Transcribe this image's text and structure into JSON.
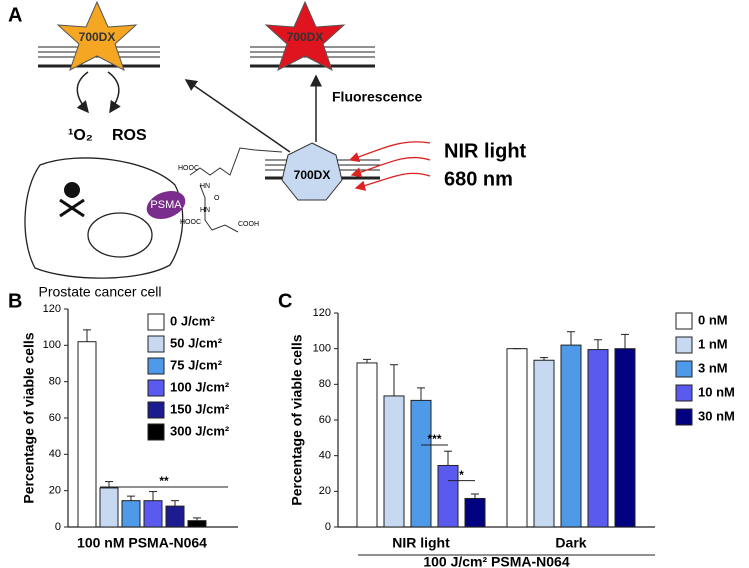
{
  "panels": [
    "A",
    "B",
    "C"
  ],
  "diagram": {
    "star_labels": [
      "700DX",
      "700DX"
    ],
    "conjugate_label": "700DX",
    "fluorescence": "Fluorescence",
    "species": [
      "¹O₂",
      "ROS"
    ],
    "light": [
      "NIR light",
      "680 nm"
    ],
    "receptor": "PSMA",
    "cell": "Prostate cancer cell",
    "chemistry": [
      "HOOC",
      "HN",
      "O",
      "HN",
      "HOOC",
      "COOH"
    ]
  },
  "chart_data": [
    {
      "type": "bar",
      "ylabel": "Percentage of viable cells",
      "categories": [
        "100 nM PSMA-N064"
      ],
      "ylim": [
        0,
        120
      ],
      "yticks": [
        0,
        20,
        40,
        60,
        80,
        100,
        120
      ],
      "annotations": [
        "**"
      ],
      "series": [
        {
          "name": "0 J/cm²",
          "color": "#ffffff",
          "values": [
            102
          ],
          "errors": [
            6.5
          ]
        },
        {
          "name": "50 J/cm²",
          "color": "#c6d9f1",
          "values": [
            21.5
          ],
          "errors": [
            3.5
          ]
        },
        {
          "name": "75 J/cm²",
          "color": "#4e9ae8",
          "values": [
            14.5
          ],
          "errors": [
            2.5
          ]
        },
        {
          "name": "100 J/cm²",
          "color": "#5a5aee",
          "values": [
            14.5
          ],
          "errors": [
            5
          ]
        },
        {
          "name": "150 J/cm²",
          "color": "#1c1c8e",
          "values": [
            11.5
          ],
          "errors": [
            3
          ]
        },
        {
          "name": "300 J/cm²",
          "color": "#000000",
          "values": [
            3.5
          ],
          "errors": [
            1.5
          ]
        }
      ]
    },
    {
      "type": "bar",
      "ylabel": "Percentage of viable cells",
      "xlabel": "100 J/cm² PSMA-N064",
      "categories": [
        "NIR light",
        "Dark"
      ],
      "ylim": [
        0,
        120
      ],
      "yticks": [
        0,
        20,
        40,
        60,
        80,
        100,
        120
      ],
      "annotations": [
        "***",
        "*"
      ],
      "series": [
        {
          "name": "0 nM",
          "color": "#ffffff",
          "values": [
            92,
            100
          ],
          "errors": [
            2,
            0
          ]
        },
        {
          "name": "1 nM",
          "color": "#c6d9f1",
          "values": [
            73.5,
            93.5
          ],
          "errors": [
            17.5,
            1.5
          ]
        },
        {
          "name": "3 nM",
          "color": "#4e9ae8",
          "values": [
            71,
            102
          ],
          "errors": [
            7,
            7.5
          ]
        },
        {
          "name": "10 nM",
          "color": "#5a5aee",
          "values": [
            34.5,
            99.5
          ],
          "errors": [
            8,
            5.5
          ]
        },
        {
          "name": "30 nM",
          "color": "#000080",
          "values": [
            16,
            100
          ],
          "errors": [
            2.5,
            8
          ]
        }
      ]
    }
  ]
}
